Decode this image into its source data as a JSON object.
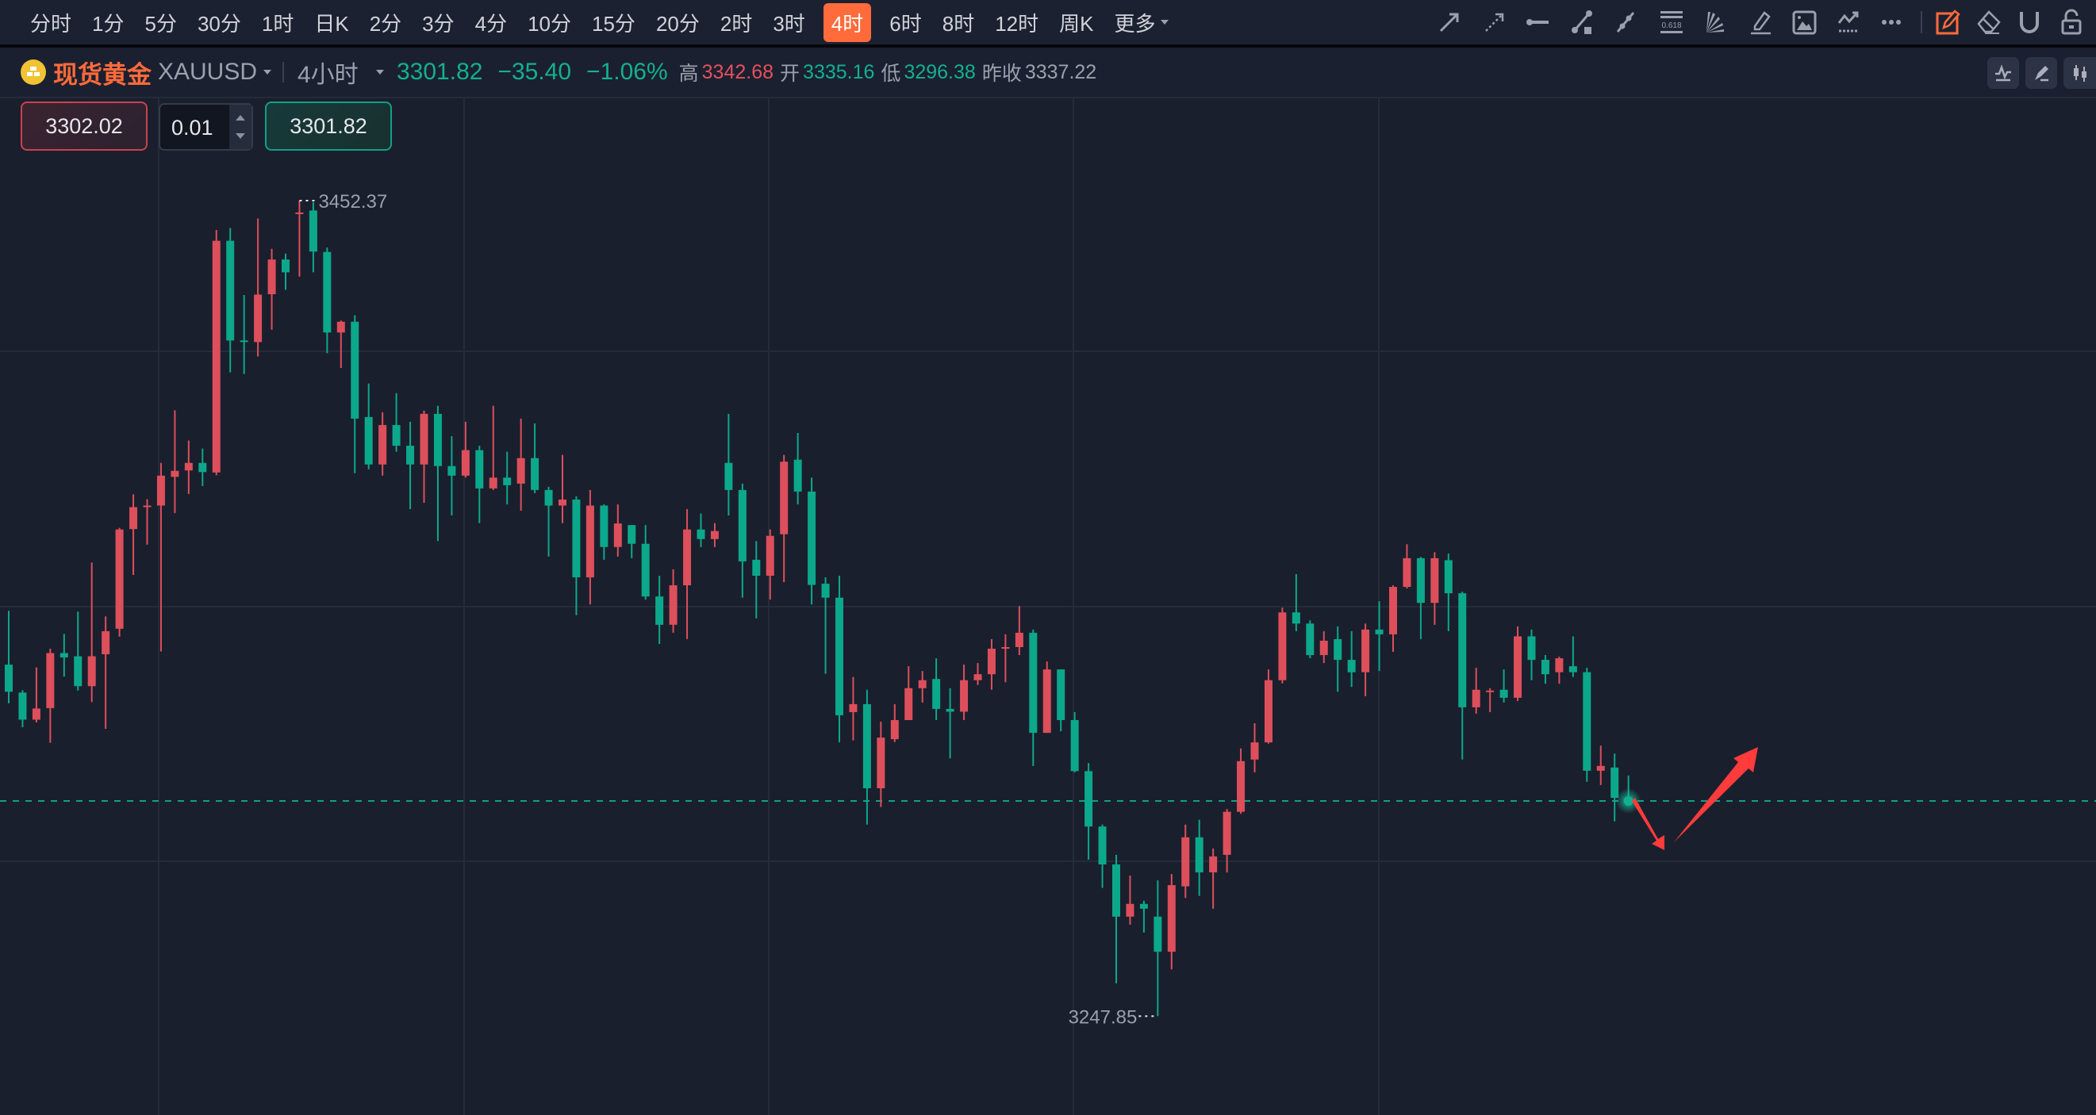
{
  "toolbar": {
    "periods": [
      "分时",
      "1分",
      "5分",
      "30分",
      "1时",
      "日K",
      "2分",
      "3分",
      "4分",
      "10分",
      "15分",
      "20分",
      "2时",
      "3时",
      "4时",
      "6时",
      "8时",
      "12时",
      "周K",
      "更多"
    ],
    "active_period": "4时",
    "drawing_tools": [
      "arrow-line-icon",
      "dashed-arrow-icon",
      "horizontal-line-icon",
      "segment-icon",
      "ray-icon",
      "fibonacci-icon",
      "fan-icon",
      "highlighter-icon",
      "image-icon",
      "pattern-icon",
      "more-icon"
    ],
    "fib_label": "0.618",
    "right_tools": [
      "draw-mode-icon",
      "eraser-icon",
      "magnet-icon",
      "lock-icon"
    ]
  },
  "header": {
    "name": "现货黄金",
    "symbol": "XAUUSD",
    "period": "4小时",
    "price": "3301.82",
    "change": "−35.40",
    "change_pct": "−1.06%",
    "high_label": "高",
    "high": "3342.68",
    "open_label": "开",
    "open": "3335.16",
    "low_label": "低",
    "low": "3296.38",
    "prev_close_label": "昨收",
    "prev_close": "3337.22"
  },
  "trade": {
    "sell_price": "3302.02",
    "quantity": "0.01",
    "buy_price": "3301.82"
  },
  "colors": {
    "up": "#dd4f5b",
    "down": "#0ca88b",
    "accent": "#ff6b3a",
    "annotation": "#ff3b3b"
  },
  "chart_data": {
    "type": "candlestick",
    "interval": "4小时",
    "fields": [
      "open",
      "high",
      "low",
      "close"
    ],
    "max_label": "3452.37",
    "min_label": "3247.85",
    "current_price": 3301.82,
    "candles": [
      [
        3336.0,
        3349.5,
        3326.3,
        3329.2
      ],
      [
        3329.0,
        3329.6,
        3320.3,
        3322.2
      ],
      [
        3322.2,
        3335.3,
        3321.5,
        3325.0
      ],
      [
        3325.1,
        3340.0,
        3316.4,
        3338.9
      ],
      [
        3338.9,
        3343.7,
        3333.0,
        3337.8
      ],
      [
        3338.1,
        3349.3,
        3329.5,
        3330.6
      ],
      [
        3330.6,
        3361.6,
        3326.6,
        3338.1
      ],
      [
        3338.6,
        3348.1,
        3319.9,
        3344.4
      ],
      [
        3345.0,
        3370.3,
        3343.0,
        3369.9
      ],
      [
        3370.0,
        3378.7,
        3358.5,
        3375.5
      ],
      [
        3375.6,
        3377.5,
        3366.1,
        3375.9
      ],
      [
        3375.9,
        3386.6,
        3339.3,
        3383.4
      ],
      [
        3383.1,
        3399.8,
        3374.0,
        3384.6
      ],
      [
        3384.7,
        3392.2,
        3378.8,
        3386.6
      ],
      [
        3386.6,
        3390.2,
        3380.8,
        3384.3
      ],
      [
        3384.2,
        3445.0,
        3383.5,
        3442.3
      ],
      [
        3442.3,
        3445.5,
        3409.3,
        3417.3
      ],
      [
        3417.3,
        3428.7,
        3408.9,
        3417.0
      ],
      [
        3416.9,
        3447.9,
        3413.3,
        3428.8
      ],
      [
        3428.9,
        3440.3,
        3420.0,
        3437.6
      ],
      [
        3437.6,
        3439.1,
        3430.0,
        3434.4
      ],
      [
        3449.1,
        3452.37,
        3433.3,
        3449.4
      ],
      [
        3449.9,
        3452.0,
        3434.4,
        3439.6
      ],
      [
        3439.5,
        3440.6,
        3414.1,
        3419.3
      ],
      [
        3419.3,
        3422.3,
        3410.4,
        3422.0
      ],
      [
        3422.0,
        3423.6,
        3384.0,
        3397.7
      ],
      [
        3398.1,
        3406.5,
        3385.0,
        3386.2
      ],
      [
        3386.2,
        3399.3,
        3383.4,
        3396.1
      ],
      [
        3396.1,
        3404.1,
        3389.4,
        3390.9
      ],
      [
        3390.9,
        3396.9,
        3375.0,
        3386.2
      ],
      [
        3386.2,
        3399.7,
        3376.6,
        3398.9
      ],
      [
        3398.9,
        3400.9,
        3367.0,
        3385.8
      ],
      [
        3385.8,
        3393.3,
        3373.4,
        3383.4
      ],
      [
        3383.4,
        3396.9,
        3382.9,
        3389.8
      ],
      [
        3389.8,
        3390.9,
        3371.5,
        3380.2
      ],
      [
        3380.2,
        3400.9,
        3379.8,
        3382.9
      ],
      [
        3382.9,
        3389.4,
        3376.2,
        3381.0
      ],
      [
        3381.4,
        3397.7,
        3374.6,
        3387.8
      ],
      [
        3387.8,
        3396.5,
        3379.0,
        3379.8
      ],
      [
        3379.8,
        3380.6,
        3363.1,
        3375.9
      ],
      [
        3375.9,
        3388.6,
        3371.5,
        3377.4
      ],
      [
        3377.4,
        3378.2,
        3348.4,
        3357.9
      ],
      [
        3357.9,
        3379.8,
        3351.1,
        3375.9
      ],
      [
        3375.9,
        3376.2,
        3362.3,
        3365.5
      ],
      [
        3365.5,
        3376.2,
        3363.1,
        3371.4
      ],
      [
        3371.0,
        3371.0,
        3362.7,
        3366.3
      ],
      [
        3366.3,
        3371.0,
        3352.3,
        3353.1
      ],
      [
        3353.1,
        3358.3,
        3341.2,
        3346.0
      ],
      [
        3346.0,
        3359.9,
        3344.0,
        3355.9
      ],
      [
        3355.9,
        3375.0,
        3342.4,
        3369.9
      ],
      [
        3369.9,
        3373.9,
        3365.5,
        3367.5
      ],
      [
        3367.5,
        3371.5,
        3365.5,
        3369.5
      ],
      [
        3386.6,
        3398.9,
        3373.4,
        3379.8
      ],
      [
        3379.8,
        3381.4,
        3352.8,
        3361.9
      ],
      [
        3362.3,
        3367.0,
        3347.6,
        3358.3
      ],
      [
        3358.3,
        3369.9,
        3352.3,
        3368.3
      ],
      [
        3368.7,
        3388.6,
        3356.7,
        3386.9
      ],
      [
        3387.4,
        3394.1,
        3376.2,
        3379.4
      ],
      [
        3379.4,
        3382.9,
        3351.1,
        3356.0
      ],
      [
        3356.3,
        3357.9,
        3333.7,
        3352.8
      ],
      [
        3352.8,
        3358.3,
        3316.5,
        3323.3
      ],
      [
        3324.1,
        3332.9,
        3317.0,
        3326.1
      ],
      [
        3326.1,
        3329.7,
        3295.9,
        3305.0
      ],
      [
        3305.0,
        3321.7,
        3300.3,
        3317.7
      ],
      [
        3317.3,
        3326.1,
        3316.6,
        3322.1
      ],
      [
        3322.1,
        3335.6,
        3322.1,
        3330.1
      ],
      [
        3330.1,
        3334.4,
        3326.5,
        3332.1
      ],
      [
        3332.4,
        3337.6,
        3322.1,
        3324.9
      ],
      [
        3324.9,
        3330.1,
        3312.5,
        3324.2
      ],
      [
        3324.2,
        3336.0,
        3322.1,
        3332.1
      ],
      [
        3332.1,
        3336.4,
        3330.9,
        3333.6
      ],
      [
        3333.6,
        3342.4,
        3329.7,
        3340.0
      ],
      [
        3340.2,
        3343.6,
        3331.6,
        3340.4
      ],
      [
        3340.4,
        3350.7,
        3338.4,
        3344.0
      ],
      [
        3344.0,
        3344.8,
        3310.6,
        3318.9
      ],
      [
        3318.9,
        3336.8,
        3318.9,
        3334.8
      ],
      [
        3334.8,
        3334.8,
        3319.3,
        3322.1
      ],
      [
        3322.1,
        3324.1,
        3309.0,
        3309.3
      ],
      [
        3309.3,
        3311.3,
        3287.1,
        3295.4
      ],
      [
        3295.4,
        3295.9,
        3280.0,
        3285.9
      ],
      [
        3285.9,
        3288.3,
        3256.1,
        3272.8
      ],
      [
        3272.8,
        3283.1,
        3270.8,
        3276.0
      ],
      [
        3276.0,
        3276.8,
        3268.8,
        3274.8
      ],
      [
        3272.8,
        3281.9,
        3247.85,
        3264.0
      ],
      [
        3264.0,
        3283.5,
        3259.6,
        3280.7
      ],
      [
        3280.4,
        3295.9,
        3277.5,
        3292.7
      ],
      [
        3292.7,
        3297.1,
        3278.0,
        3283.9
      ],
      [
        3283.9,
        3289.9,
        3274.8,
        3287.9
      ],
      [
        3288.3,
        3299.8,
        3283.9,
        3299.1
      ],
      [
        3299.1,
        3315.0,
        3298.6,
        3311.8
      ],
      [
        3312.2,
        3321.3,
        3309.0,
        3316.5
      ],
      [
        3316.5,
        3334.8,
        3316.2,
        3332.1
      ],
      [
        3332.1,
        3350.3,
        3331.3,
        3349.1
      ],
      [
        3349.1,
        3358.7,
        3344.4,
        3346.3
      ],
      [
        3346.3,
        3347.1,
        3337.6,
        3338.4
      ],
      [
        3338.4,
        3344.4,
        3336.4,
        3342.0
      ],
      [
        3342.4,
        3345.6,
        3329.2,
        3337.2
      ],
      [
        3337.2,
        3344.4,
        3330.4,
        3334.1
      ],
      [
        3334.1,
        3346.3,
        3328.1,
        3344.8
      ],
      [
        3344.8,
        3351.9,
        3334.4,
        3343.6
      ],
      [
        3343.6,
        3355.9,
        3339.2,
        3355.5
      ],
      [
        3355.5,
        3366.2,
        3355.1,
        3362.7
      ],
      [
        3362.7,
        3363.0,
        3342.4,
        3351.5
      ],
      [
        3351.5,
        3364.2,
        3346.0,
        3362.7
      ],
      [
        3362.2,
        3363.9,
        3344.4,
        3353.9
      ],
      [
        3353.9,
        3354.3,
        3312.2,
        3325.3
      ],
      [
        3325.3,
        3335.2,
        3323.7,
        3329.7
      ],
      [
        3329.4,
        3330.1,
        3324.1,
        3329.5
      ],
      [
        3329.7,
        3334.8,
        3326.5,
        3327.7
      ],
      [
        3327.7,
        3345.6,
        3326.9,
        3343.1
      ],
      [
        3343.1,
        3344.8,
        3332.1,
        3337.2
      ],
      [
        3337.2,
        3338.4,
        3331.2,
        3333.6
      ],
      [
        3334.1,
        3338.0,
        3331.2,
        3337.6
      ],
      [
        3335.6,
        3343.1,
        3332.9,
        3334.1
      ],
      [
        3334.1,
        3335.2,
        3306.6,
        3309.4
      ],
      [
        3309.4,
        3315.7,
        3305.8,
        3310.6
      ],
      [
        3310.2,
        3313.7,
        3296.7,
        3302.6
      ],
      [
        3302.6,
        3308.2,
        3300.6,
        3301.82
      ]
    ]
  }
}
